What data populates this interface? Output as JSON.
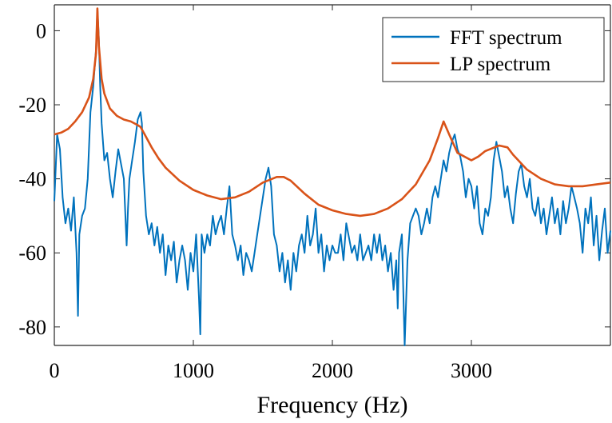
{
  "chart_data": {
    "type": "line",
    "title": "",
    "xlabel": "Frequency (Hz)",
    "ylabel": "",
    "xlim": [
      0,
      4000
    ],
    "ylim": [
      -85,
      7
    ],
    "grid": false,
    "box": true,
    "legend_position": "top-right",
    "x_ticks": [
      {
        "value": 0,
        "label": "0"
      },
      {
        "value": 1000,
        "label": "1000"
      },
      {
        "value": 2000,
        "label": "2000"
      },
      {
        "value": 3000,
        "label": "3000"
      }
    ],
    "y_ticks": [
      {
        "value": 0,
        "label": "0"
      },
      {
        "value": -20,
        "label": "-20"
      },
      {
        "value": -40,
        "label": "-40"
      },
      {
        "value": -60,
        "label": "-60"
      },
      {
        "value": -80,
        "label": "-80"
      }
    ],
    "series": [
      {
        "name": "FFT spectrum",
        "color": "#0072BD",
        "x": [
          0,
          20,
          40,
          60,
          80,
          100,
          120,
          140,
          160,
          170,
          180,
          200,
          220,
          240,
          260,
          280,
          300,
          310,
          320,
          330,
          340,
          360,
          380,
          400,
          420,
          440,
          460,
          480,
          500,
          520,
          530,
          540,
          560,
          580,
          600,
          620,
          630,
          640,
          660,
          680,
          700,
          720,
          740,
          760,
          780,
          800,
          820,
          840,
          860,
          880,
          900,
          920,
          940,
          960,
          980,
          1000,
          1020,
          1040,
          1050,
          1060,
          1080,
          1100,
          1120,
          1140,
          1160,
          1180,
          1200,
          1220,
          1240,
          1260,
          1280,
          1300,
          1320,
          1340,
          1360,
          1380,
          1400,
          1420,
          1440,
          1460,
          1480,
          1500,
          1520,
          1540,
          1560,
          1580,
          1600,
          1620,
          1640,
          1660,
          1680,
          1700,
          1720,
          1740,
          1760,
          1780,
          1800,
          1820,
          1840,
          1860,
          1880,
          1900,
          1920,
          1940,
          1960,
          1980,
          2000,
          2020,
          2040,
          2060,
          2080,
          2100,
          2120,
          2140,
          2160,
          2180,
          2200,
          2220,
          2240,
          2260,
          2280,
          2300,
          2320,
          2340,
          2360,
          2380,
          2400,
          2420,
          2440,
          2460,
          2470,
          2480,
          2500,
          2520,
          2540,
          2560,
          2580,
          2600,
          2620,
          2640,
          2660,
          2680,
          2700,
          2720,
          2740,
          2760,
          2780,
          2800,
          2820,
          2840,
          2860,
          2880,
          2900,
          2920,
          2940,
          2960,
          2980,
          3000,
          3020,
          3040,
          3060,
          3080,
          3100,
          3120,
          3140,
          3160,
          3180,
          3200,
          3220,
          3240,
          3260,
          3280,
          3300,
          3320,
          3340,
          3360,
          3380,
          3400,
          3420,
          3440,
          3460,
          3480,
          3500,
          3520,
          3540,
          3560,
          3580,
          3600,
          3620,
          3640,
          3660,
          3680,
          3700,
          3720,
          3740,
          3760,
          3780,
          3800,
          3820,
          3840,
          3860,
          3880,
          3900,
          3920,
          3940,
          3960,
          3980,
          4000
        ],
        "y": [
          -46,
          -28,
          -32,
          -45,
          -52,
          -48,
          -54,
          -45,
          -60,
          -77,
          -55,
          -50,
          -48,
          -40,
          -22,
          -15,
          -5,
          6,
          -2,
          -15,
          -25,
          -35,
          -33,
          -40,
          -45,
          -38,
          -32,
          -36,
          -40,
          -58,
          -48,
          -40,
          -35,
          -30,
          -24,
          -22,
          -25,
          -38,
          -50,
          -55,
          -52,
          -58,
          -53,
          -60,
          -55,
          -66,
          -58,
          -62,
          -57,
          -68,
          -62,
          -58,
          -62,
          -70,
          -60,
          -65,
          -55,
          -72,
          -82,
          -55,
          -60,
          -55,
          -58,
          -50,
          -55,
          -52,
          -50,
          -55,
          -48,
          -42,
          -55,
          -58,
          -62,
          -58,
          -66,
          -60,
          -62,
          -65,
          -60,
          -55,
          -50,
          -45,
          -40,
          -37,
          -42,
          -55,
          -58,
          -65,
          -60,
          -68,
          -62,
          -70,
          -60,
          -65,
          -58,
          -55,
          -60,
          -50,
          -58,
          -55,
          -48,
          -60,
          -55,
          -65,
          -58,
          -62,
          -58,
          -60,
          -60,
          -55,
          -62,
          -52,
          -56,
          -60,
          -58,
          -62,
          -55,
          -62,
          -60,
          -58,
          -62,
          -55,
          -60,
          -55,
          -62,
          -58,
          -65,
          -60,
          -70,
          -62,
          -75,
          -60,
          -55,
          -85,
          -62,
          -52,
          -50,
          -48,
          -50,
          -55,
          -52,
          -48,
          -52,
          -45,
          -42,
          -45,
          -40,
          -35,
          -38,
          -33,
          -30,
          -28,
          -32,
          -34,
          -38,
          -45,
          -40,
          -42,
          -48,
          -42,
          -52,
          -55,
          -48,
          -50,
          -45,
          -35,
          -30,
          -34,
          -38,
          -45,
          -42,
          -48,
          -52,
          -44,
          -38,
          -36,
          -42,
          -45,
          -40,
          -48,
          -50,
          -45,
          -52,
          -48,
          -55,
          -50,
          -45,
          -52,
          -48,
          -55,
          -46,
          -52,
          -48,
          -42,
          -45,
          -48,
          -52,
          -60,
          -48,
          -52,
          -45,
          -58,
          -50,
          -62,
          -54,
          -48,
          -60,
          -54
        ]
      },
      {
        "name": "LP spectrum",
        "color": "#D95319",
        "x": [
          0,
          50,
          100,
          150,
          200,
          250,
          280,
          300,
          310,
          320,
          340,
          360,
          400,
          450,
          500,
          550,
          600,
          620,
          650,
          700,
          750,
          800,
          900,
          1000,
          1100,
          1200,
          1300,
          1400,
          1500,
          1600,
          1650,
          1700,
          1800,
          1900,
          2000,
          2100,
          2200,
          2300,
          2400,
          2500,
          2600,
          2700,
          2760,
          2800,
          2840,
          2900,
          3000,
          3050,
          3100,
          3200,
          3260,
          3300,
          3400,
          3500,
          3600,
          3700,
          3800,
          3900,
          4000
        ],
        "y": [
          -28,
          -27.5,
          -26.5,
          -24.5,
          -22,
          -18,
          -13,
          -6,
          6,
          -4,
          -13,
          -17,
          -21,
          -23,
          -24,
          -24.5,
          -25.5,
          -26,
          -28,
          -31.5,
          -34.5,
          -37,
          -40.5,
          -43,
          -44.5,
          -45.5,
          -45,
          -43.5,
          -41,
          -39.5,
          -39.5,
          -40.5,
          -44,
          -47,
          -48.5,
          -49.5,
          -50,
          -49.5,
          -48,
          -45.5,
          -41.5,
          -35,
          -29,
          -24.5,
          -28,
          -33,
          -35,
          -34,
          -32.5,
          -31,
          -31.5,
          -33.5,
          -37.5,
          -40,
          -41.5,
          -42,
          -42,
          -41.5,
          -41
        ]
      }
    ]
  }
}
